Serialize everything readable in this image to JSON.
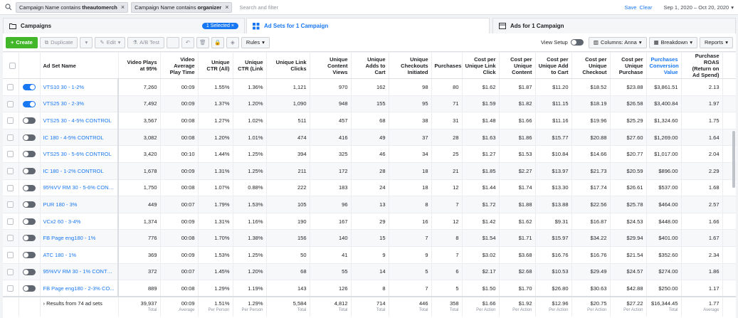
{
  "filters": {
    "chips": [
      {
        "prefix": "Campaign Name contains ",
        "value": "theautomerch"
      },
      {
        "prefix": "Campaign Name contains ",
        "value": "organizer"
      }
    ],
    "placeholder": "Search and filter",
    "save_label": "Save",
    "clear_label": "Clear",
    "date_range": "Sep 1, 2020 – Oct 20, 2020"
  },
  "tabs": {
    "campaigns": "Campaigns",
    "selected": "1 Selected",
    "adsets": "Ad Sets for 1 Campaign",
    "ads": "Ads for 1 Campaign"
  },
  "toolbar": {
    "create": "Create",
    "duplicate": "Duplicate",
    "edit": "Edit",
    "ab_test": "A/B Test",
    "rules": "Rules",
    "view_setup": "View Setup",
    "columns": "Columns: Anna",
    "breakdown": "Breakdown",
    "reports": "Reports"
  },
  "columns": [
    "Ad Set Name",
    "Video Plays at 95%",
    "Video Average Play Time",
    "Unique CTR (All)",
    "Unique CTR (Link",
    "Unique Link Clicks",
    "Unique Content Views",
    "Unique Adds to Cart",
    "Unique Checkouts Initiated",
    "Purchases",
    "Cost per Unique Link Click",
    "Cost per Unique Content",
    "Cost per Unique Add to Cart",
    "Cost per Unique Checkout",
    "Cost per Unique Purchase",
    "Purchases Conversion Value",
    "Purchase ROAS (Return on Ad Spend)",
    "Amount Spent"
  ],
  "rows": [
    {
      "on": true,
      "cells": [
        "VTS10 30 - 1-2%",
        "7,260",
        "00:09",
        "1.55%",
        "1.36%",
        "1,121",
        "970",
        "162",
        "98",
        "80",
        "$1.62",
        "$1.87",
        "$11.20",
        "$18.52",
        "$23.88",
        "$3,861.51",
        "2.13",
        "$1,814.81"
      ]
    },
    {
      "on": true,
      "cells": [
        "VTS25 30 - 2-3%",
        "7,492",
        "00:09",
        "1.37%",
        "1.20%",
        "1,090",
        "948",
        "155",
        "95",
        "71",
        "$1.59",
        "$1.82",
        "$11.15",
        "$18.19",
        "$26.58",
        "$3,400.84",
        "1.97",
        "$1,728.02"
      ]
    },
    {
      "on": false,
      "cells": [
        "VTS25 30 - 4-5% CONTROL",
        "3,567",
        "00:08",
        "1.27%",
        "1.02%",
        "511",
        "457",
        "68",
        "38",
        "31",
        "$1.48",
        "$1.66",
        "$11.16",
        "$19.96",
        "$25.29",
        "$1,324.60",
        "1.75",
        "$758.64"
      ]
    },
    {
      "on": false,
      "cells": [
        "IC 180 - 4-5% CONTROL",
        "3,082",
        "00:08",
        "1.20%",
        "1.01%",
        "474",
        "416",
        "49",
        "37",
        "28",
        "$1.63",
        "$1.86",
        "$15.77",
        "$20.88",
        "$27.60",
        "$1,269.00",
        "1.64",
        "$772.66"
      ]
    },
    {
      "on": false,
      "cells": [
        "VTS25 30 - 5-6% CONTROL",
        "3,420",
        "00:10",
        "1.44%",
        "1.25%",
        "394",
        "325",
        "46",
        "34",
        "25",
        "$1.27",
        "$1.53",
        "$10.84",
        "$14.66",
        "$20.77",
        "$1,017.00",
        "2.04",
        "$498.58"
      ]
    },
    {
      "on": false,
      "cells": [
        "IC 180 - 1-2% CONTROL",
        "1,678",
        "00:09",
        "1.31%",
        "1.25%",
        "211",
        "172",
        "28",
        "18",
        "21",
        "$1.85",
        "$2.27",
        "$13.97",
        "$21.73",
        "$20.59",
        "$896.00",
        "2.29",
        "$391.12"
      ]
    },
    {
      "on": false,
      "cells": [
        "95%VV RM 30 - 5-6% CONT...",
        "1,750",
        "00:08",
        "1.07%",
        "0.88%",
        "222",
        "183",
        "24",
        "18",
        "12",
        "$1.44",
        "$1.74",
        "$13.30",
        "$17.74",
        "$26.61",
        "$537.00",
        "1.68",
        "$319.26"
      ]
    },
    {
      "on": false,
      "cells": [
        "PUR 180 - 3%",
        "449",
        "00:07",
        "1.79%",
        "1.53%",
        "105",
        "96",
        "13",
        "8",
        "7",
        "$1.72",
        "$1.88",
        "$13.88",
        "$22.56",
        "$25.78",
        "$464.00",
        "2.57",
        "$180.47"
      ]
    },
    {
      "on": false,
      "cells": [
        "VCx2 60 - 3-4%",
        "1,374",
        "00:09",
        "1.31%",
        "1.16%",
        "190",
        "167",
        "29",
        "16",
        "12",
        "$1.42",
        "$1.62",
        "$9.31",
        "$16.87",
        "$24.53",
        "$448.00",
        "1.66",
        "$269.88"
      ]
    },
    {
      "on": false,
      "cells": [
        "FB Page eng180 - 1%",
        "776",
        "00:08",
        "1.70%",
        "1.38%",
        "156",
        "140",
        "15",
        "7",
        "8",
        "$1.54",
        "$1.71",
        "$15.97",
        "$34.22",
        "$29.94",
        "$401.00",
        "1.67",
        "$239.52"
      ]
    },
    {
      "on": false,
      "cells": [
        "ATC 180 - 1%",
        "369",
        "00:09",
        "1.53%",
        "1.25%",
        "50",
        "41",
        "9",
        "9",
        "7",
        "$3.02",
        "$3.68",
        "$16.76",
        "$16.76",
        "$21.54",
        "$352.60",
        "2.34",
        "$150.80"
      ]
    },
    {
      "on": false,
      "cells": [
        "95%VV RM 30 - 1% CONTR...",
        "372",
        "00:07",
        "1.45%",
        "1.20%",
        "68",
        "55",
        "14",
        "5",
        "6",
        "$2.17",
        "$2.68",
        "$10.53",
        "$29.49",
        "$24.57",
        "$274.00",
        "1.86",
        "$147.43"
      ]
    },
    {
      "on": false,
      "cells": [
        "FB Page eng180 - 2-3% CO...",
        "889",
        "00:08",
        "1.29%",
        "1.19%",
        "143",
        "126",
        "8",
        "7",
        "5",
        "$1.50",
        "$1.70",
        "$26.80",
        "$30.63",
        "$42.88",
        "$250.00",
        "1.17",
        "$214.40"
      ]
    }
  ],
  "footer": {
    "results_label": "Results from 74 ad sets",
    "cells": [
      {
        "v": "39,937",
        "s": "Total"
      },
      {
        "v": "00:09",
        "s": "Average"
      },
      {
        "v": "1.51%",
        "s": "Per Person"
      },
      {
        "v": "1.29%",
        "s": "Per Person"
      },
      {
        "v": "5,584",
        "s": "Total"
      },
      {
        "v": "4,812",
        "s": "Total"
      },
      {
        "v": "714",
        "s": "Total"
      },
      {
        "v": "446",
        "s": "Total"
      },
      {
        "v": "358",
        "s": "Total"
      },
      {
        "v": "$1.66",
        "s": "Per Action"
      },
      {
        "v": "$1.92",
        "s": "Per Action"
      },
      {
        "v": "$12.96",
        "s": "Per Action"
      },
      {
        "v": "$20.75",
        "s": "Per Action"
      },
      {
        "v": "$27.22",
        "s": "Per Action"
      },
      {
        "v": "$16,344.45",
        "s": "Total"
      },
      {
        "v": "1.77",
        "s": "Average"
      },
      {
        "v": "$9,255.94",
        "s": "Total Spent"
      }
    ]
  },
  "colors": {
    "accent": "#1877f2",
    "create": "#42b72a"
  }
}
